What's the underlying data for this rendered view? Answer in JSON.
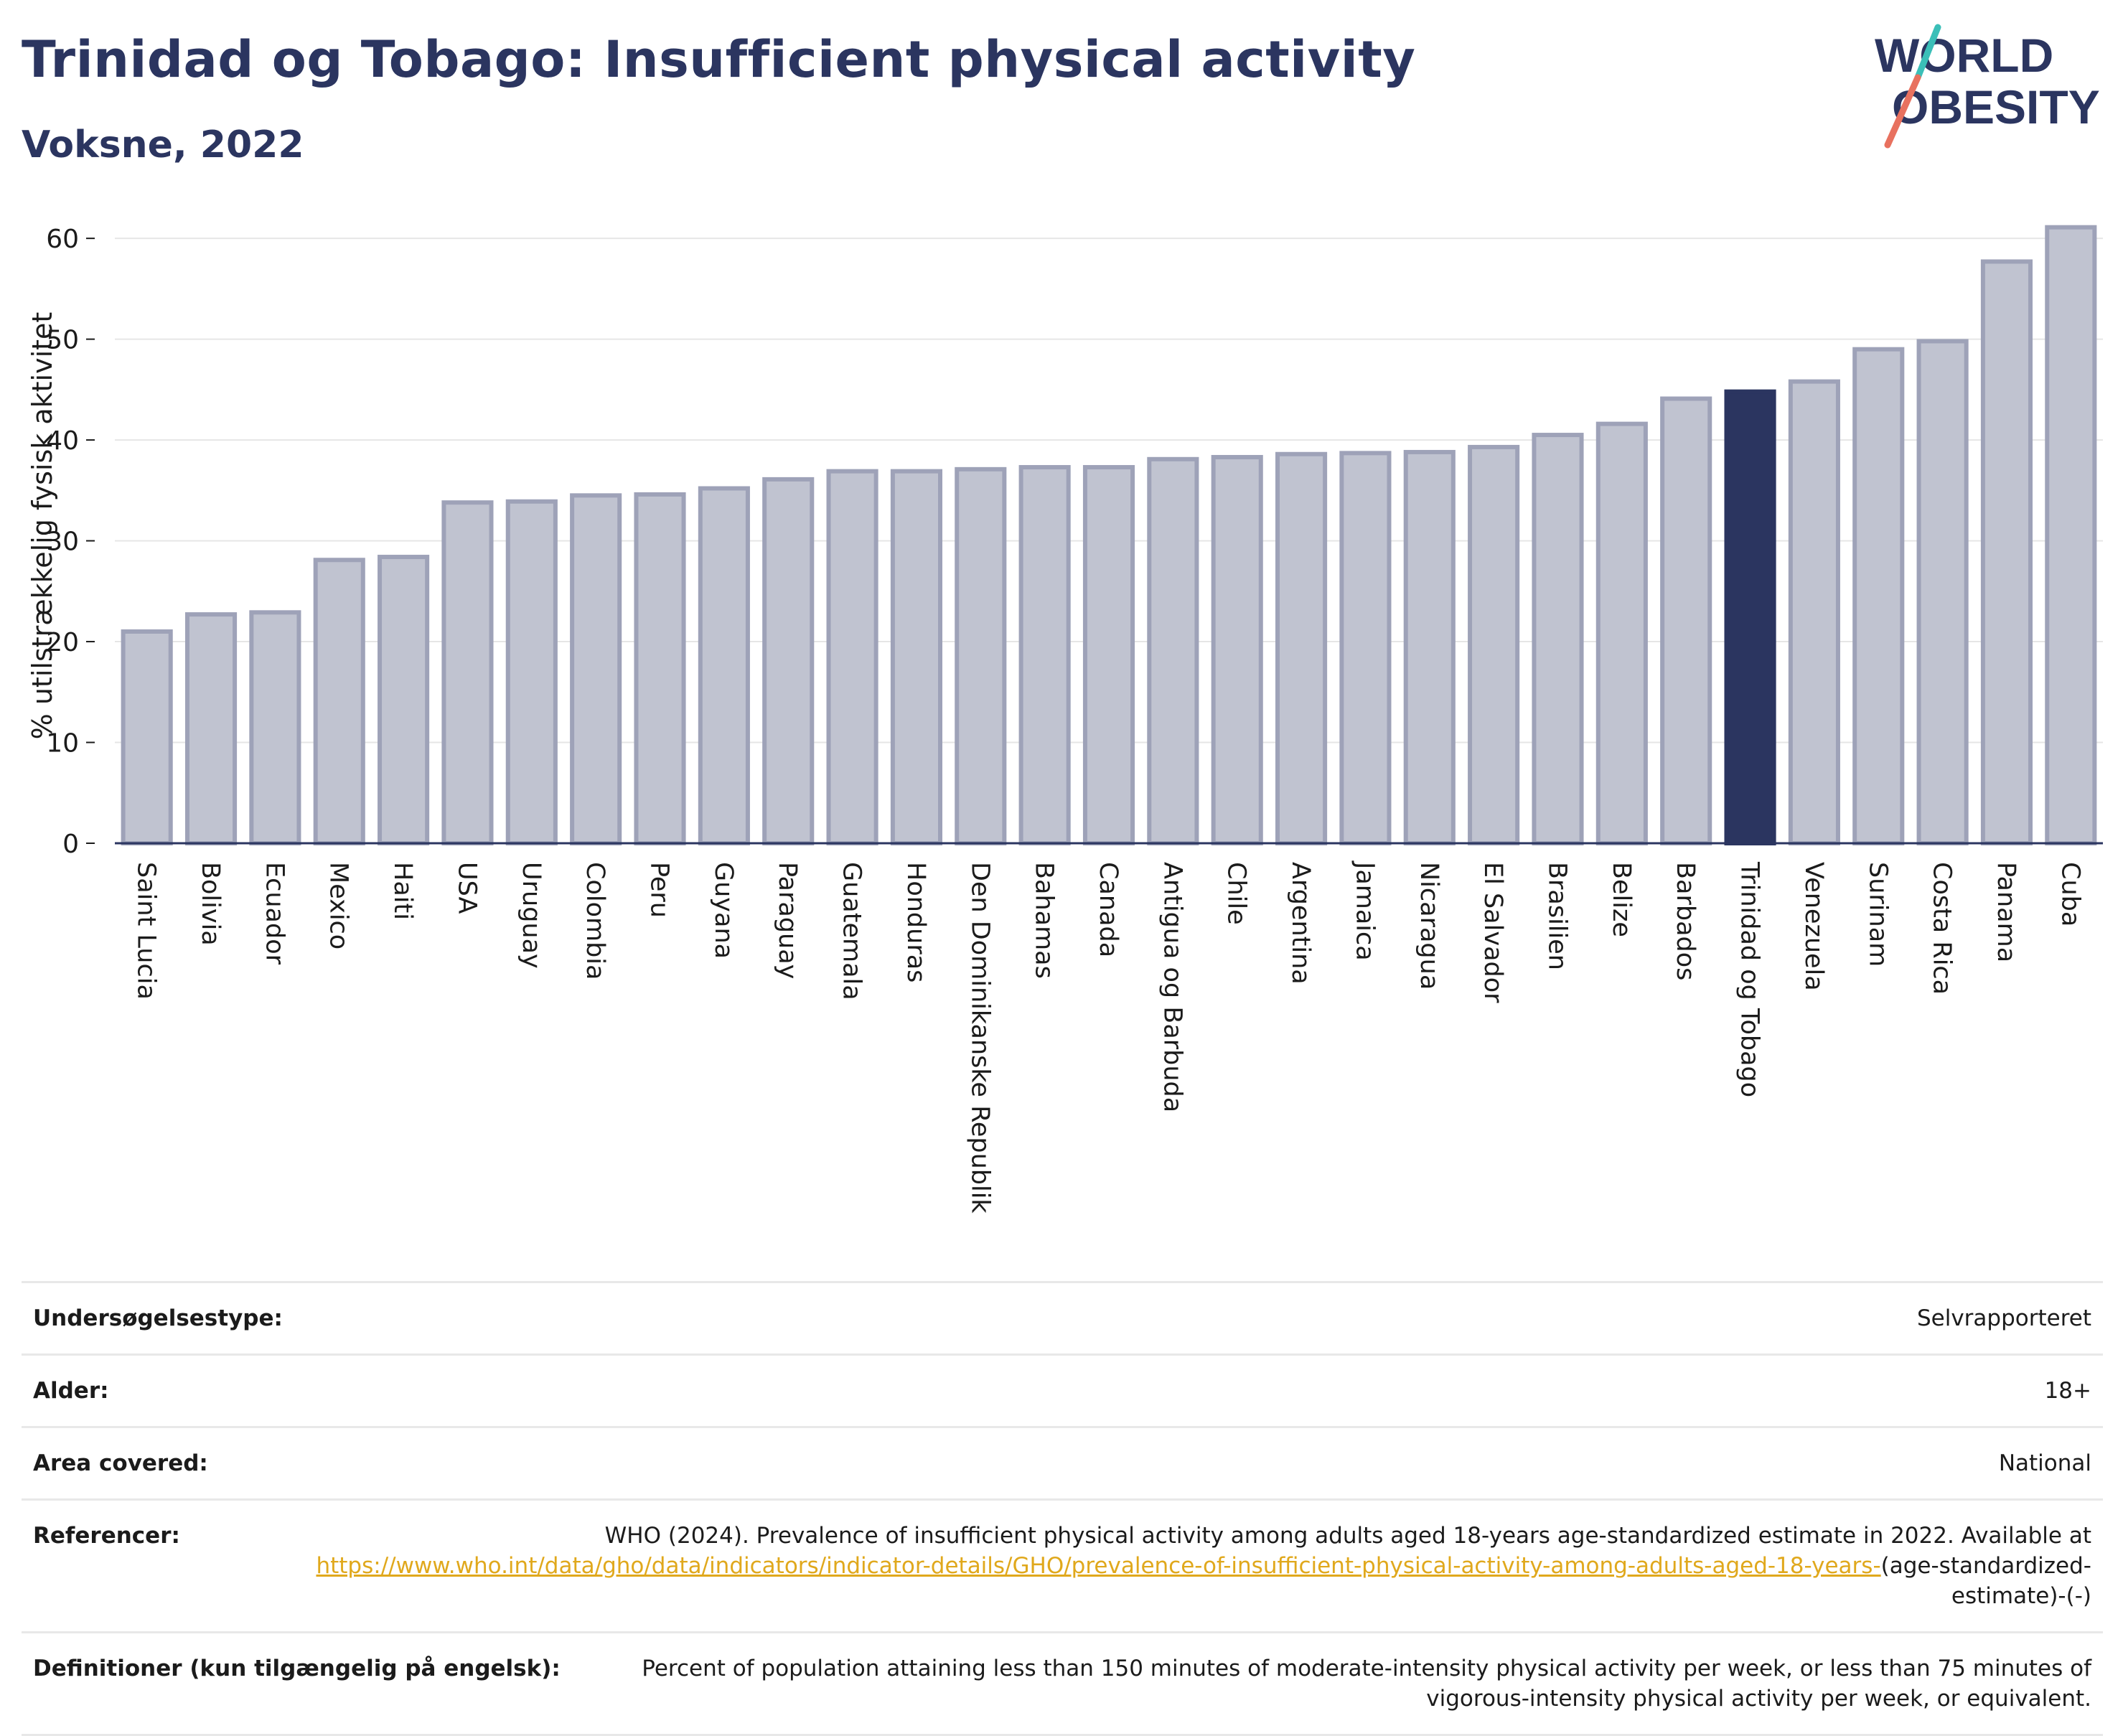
{
  "header": {
    "title": "Trinidad og Tobago: Insufficient physical activity",
    "subtitle": "Voksne, 2022",
    "logo_line1": "WORLD",
    "logo_line2": "OBESITY"
  },
  "colors": {
    "bar_default": "#c0c3d0",
    "bar_default_stroke": "#9ea2b8",
    "bar_highlight": "#2b3560",
    "title": "#2b3560",
    "grid": "#e6e6e6",
    "link": "#e0a81c",
    "logo_teal": "#3bbfb8",
    "logo_coral": "#e8715f"
  },
  "chart_data": {
    "type": "bar",
    "ylabel": "% utilstrækkelig fysisk aktivitet",
    "xlabel": "",
    "ylim": [
      0,
      63
    ],
    "yticks": [
      0,
      10,
      20,
      30,
      40,
      50,
      60
    ],
    "grid": true,
    "highlight": "Trinidad og Tobago",
    "categories": [
      "Saint Lucia",
      "Bolivia",
      "Ecuador",
      "Mexico",
      "Haiti",
      "USA",
      "Uruguay",
      "Colombia",
      "Peru",
      "Guyana",
      "Paraguay",
      "Guatemala",
      "Honduras",
      "Den Dominikanske Republik",
      "Bahamas",
      "Canada",
      "Antigua og Barbuda",
      "Chile",
      "Argentina",
      "Jamaica",
      "Nicaragua",
      "El Salvador",
      "Brasilien",
      "Belize",
      "Barbados",
      "Trinidad og Tobago",
      "Venezuela",
      "Surinam",
      "Costa Rica",
      "Panama",
      "Cuba"
    ],
    "values": [
      21.0,
      22.7,
      22.9,
      28.1,
      28.4,
      33.8,
      33.9,
      34.5,
      34.6,
      35.2,
      36.1,
      36.9,
      36.9,
      37.1,
      37.3,
      37.3,
      38.1,
      38.3,
      38.6,
      38.7,
      38.8,
      39.3,
      40.5,
      41.6,
      44.1,
      44.8,
      45.8,
      49.0,
      49.8,
      57.7,
      61.1
    ]
  },
  "meta": {
    "survey_label": "Undersøgelsestype:",
    "survey_value": "Selvrapporteret",
    "age_label": "Alder:",
    "age_value": "18+",
    "area_label": "Area covered:",
    "area_value": "National",
    "ref_label": "Referencer:",
    "ref_text": "WHO (2024). Prevalence of insufficient physical activity among adults aged 18-years age-standardized estimate in 2022. Available at",
    "ref_link": "https://www.who.int/data/gho/data/indicators/indicator-details/GHO/prevalence-of-insufficient-physical-activity-among-adults-aged-18-years-",
    "ref_suffix": "(age-standardized-estimate)-(-)",
    "def_label": "Definitioner (kun tilgængelig på engelsk):",
    "def_value": "Percent of population attaining less than 150 minutes of moderate-intensity physical activity per week, or less than 75 minutes of vigorous-intensity physical activity per week, or equivalent."
  }
}
